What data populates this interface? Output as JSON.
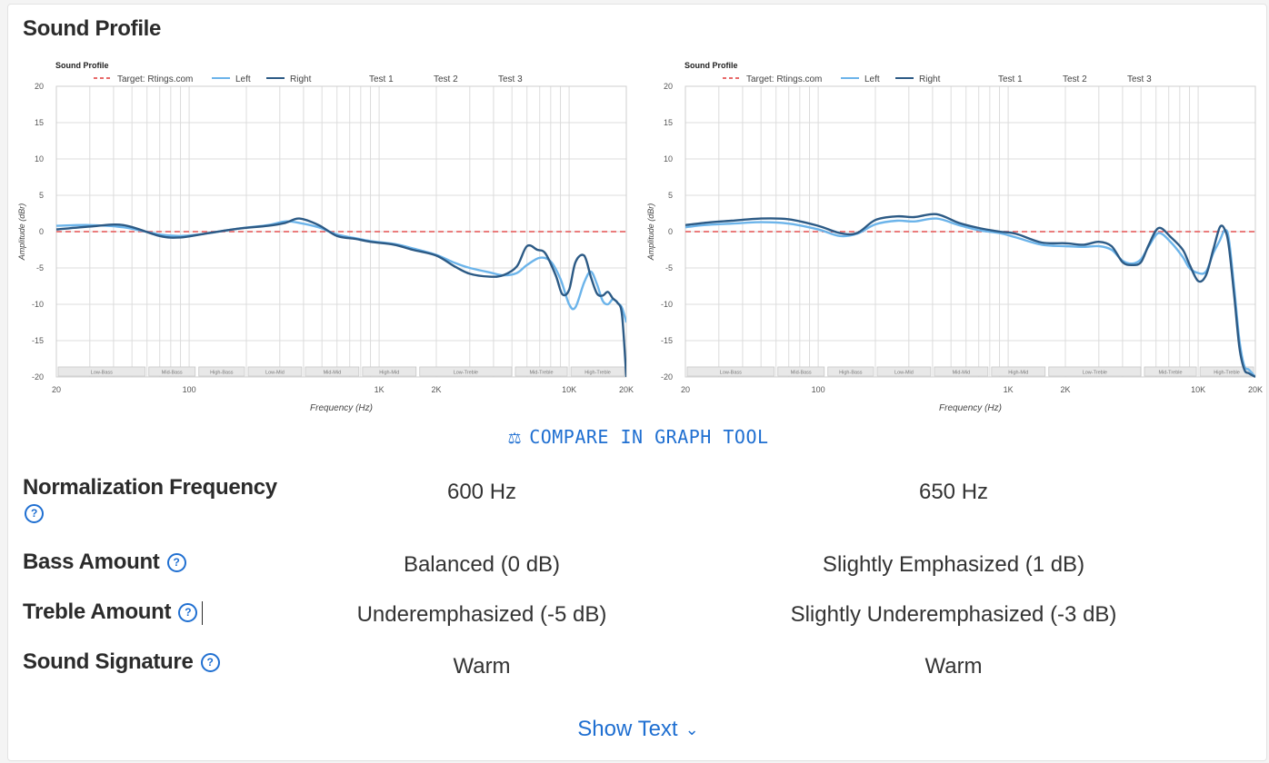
{
  "section_title": "Sound Profile",
  "compare_button": {
    "icon": "scale-icon",
    "label": "COMPARE IN GRAPH TOOL"
  },
  "chart_data": [
    {
      "type": "line",
      "title": "Sound Profile",
      "xlabel": "Frequency (Hz)",
      "ylabel": "Amplitude (dBr)",
      "xscale": "log",
      "xlim": [
        20,
        20000
      ],
      "ylim": [
        -20,
        20
      ],
      "yticks": [
        20,
        15,
        10,
        5,
        0,
        -5,
        -10,
        -15,
        -20
      ],
      "xticks": [
        {
          "v": 20,
          "label": "20"
        },
        {
          "v": 100,
          "label": "100"
        },
        {
          "v": 1000,
          "label": "1K"
        },
        {
          "v": 2000,
          "label": "2K"
        },
        {
          "v": 10000,
          "label": "10K"
        },
        {
          "v": 20000,
          "label": "20K"
        }
      ],
      "legend": [
        "Target: Rtings.com",
        "Left",
        "Right",
        "Test 1",
        "Test 2",
        "Test 3"
      ],
      "legend_position": "top",
      "grid": true,
      "bands": [
        "Low-Bass",
        "Mid-Bass",
        "High-Bass",
        "Low-Mid",
        "Mid-Mid",
        "High-Mid",
        "Low-Treble",
        "Mid-Treble",
        "High-Treble"
      ],
      "series": [
        {
          "name": "Target: Rtings.com",
          "color": "#e86a6a",
          "dash": true,
          "x": [
            20,
            20000
          ],
          "y": [
            0,
            0
          ]
        },
        {
          "name": "Left",
          "color": "#6cb4ea",
          "x": [
            20,
            30,
            45,
            70,
            90,
            120,
            180,
            260,
            320,
            380,
            480,
            600,
            750,
            900,
            1200,
            1500,
            2000,
            2500,
            3000,
            3800,
            4500,
            5300,
            6000,
            7000,
            8000,
            9000,
            10000,
            10800,
            12000,
            13000,
            14000,
            15000,
            16000,
            17000,
            18000,
            19000,
            20000
          ],
          "y": [
            0.8,
            0.9,
            0.6,
            -0.4,
            -0.6,
            -0.3,
            0.4,
            0.9,
            1.4,
            1.2,
            0.6,
            -0.4,
            -0.9,
            -1.3,
            -1.7,
            -2.3,
            -3.2,
            -4.3,
            -5.0,
            -5.6,
            -6.0,
            -5.7,
            -4.6,
            -3.6,
            -4.1,
            -6.5,
            -10.0,
            -10.4,
            -7.0,
            -5.5,
            -7.2,
            -9.5,
            -10.0,
            -9.3,
            -9.8,
            -10.5,
            -12.5
          ]
        },
        {
          "name": "Right",
          "color": "#2c5a85",
          "x": [
            20,
            30,
            45,
            70,
            90,
            120,
            180,
            260,
            320,
            380,
            480,
            600,
            750,
            900,
            1200,
            1500,
            2000,
            2500,
            3000,
            3800,
            4500,
            5300,
            6000,
            6800,
            7500,
            8500,
            9200,
            10000,
            10800,
            12000,
            13000,
            14000,
            15000,
            16000,
            17000,
            18000,
            19000,
            20000
          ],
          "y": [
            0.3,
            0.7,
            0.9,
            -0.6,
            -0.8,
            -0.3,
            0.4,
            0.8,
            1.2,
            1.8,
            0.9,
            -0.6,
            -1.0,
            -1.4,
            -1.8,
            -2.5,
            -3.3,
            -4.8,
            -5.8,
            -6.2,
            -6.0,
            -4.8,
            -2.0,
            -2.5,
            -3.0,
            -6.0,
            -8.6,
            -8.0,
            -4.2,
            -3.3,
            -6.2,
            -8.5,
            -8.8,
            -8.3,
            -9.2,
            -9.8,
            -11.5,
            -20
          ]
        }
      ]
    },
    {
      "type": "line",
      "title": "Sound Profile",
      "xlabel": "Frequency (Hz)",
      "ylabel": "Amplitude (dBr)",
      "xscale": "log",
      "xlim": [
        20,
        20000
      ],
      "ylim": [
        -20,
        20
      ],
      "yticks": [
        20,
        15,
        10,
        5,
        0,
        -5,
        -10,
        -15,
        -20
      ],
      "xticks": [
        {
          "v": 20,
          "label": "20"
        },
        {
          "v": 100,
          "label": "100"
        },
        {
          "v": 1000,
          "label": "1K"
        },
        {
          "v": 2000,
          "label": "2K"
        },
        {
          "v": 10000,
          "label": "10K"
        },
        {
          "v": 20000,
          "label": "20K"
        }
      ],
      "legend": [
        "Target: Rtings.com",
        "Left",
        "Right",
        "Test 1",
        "Test 2",
        "Test 3"
      ],
      "legend_position": "top",
      "grid": true,
      "bands": [
        "Low-Bass",
        "Mid-Bass",
        "High-Bass",
        "Low-Mid",
        "Mid-Mid",
        "High-Mid",
        "Low-Treble",
        "Mid-Treble",
        "High-Treble"
      ],
      "series": [
        {
          "name": "Target: Rtings.com",
          "color": "#e86a6a",
          "dash": true,
          "x": [
            20,
            20000
          ],
          "y": [
            0,
            0
          ]
        },
        {
          "name": "Left",
          "color": "#6cb4ea",
          "x": [
            20,
            25,
            35,
            50,
            70,
            100,
            130,
            160,
            200,
            260,
            320,
            420,
            550,
            700,
            900,
            1100,
            1500,
            2000,
            2500,
            3000,
            3500,
            4000,
            4500,
            5000,
            5500,
            6200,
            7200,
            8300,
            9000,
            10000,
            11000,
            12000,
            13000,
            13800,
            14500,
            15500,
            16500,
            17500,
            18500,
            20000
          ],
          "y": [
            0.6,
            0.9,
            1.1,
            1.3,
            1.1,
            0.3,
            -0.6,
            -0.3,
            1.0,
            1.5,
            1.4,
            1.8,
            0.9,
            0.2,
            -0.2,
            -0.8,
            -1.8,
            -2.0,
            -2.1,
            -2.0,
            -2.5,
            -4.0,
            -4.4,
            -3.8,
            -2.0,
            -0.2,
            -1.5,
            -3.5,
            -5.0,
            -5.7,
            -5.5,
            -3.0,
            -1.2,
            0.2,
            -1.0,
            -8.0,
            -15,
            -18.5,
            -19,
            -20
          ]
        },
        {
          "name": "Right",
          "color": "#2c5a85",
          "x": [
            20,
            25,
            35,
            50,
            70,
            100,
            130,
            160,
            200,
            260,
            320,
            420,
            550,
            700,
            900,
            1100,
            1500,
            2000,
            2500,
            3000,
            3500,
            4000,
            4500,
            5000,
            5500,
            6200,
            7200,
            8300,
            9000,
            10000,
            11000,
            12000,
            13000,
            13800,
            14500,
            15500,
            16500,
            17500,
            18500,
            20000
          ],
          "y": [
            0.9,
            1.2,
            1.5,
            1.8,
            1.7,
            0.8,
            -0.2,
            -0.2,
            1.6,
            2.1,
            2.0,
            2.4,
            1.2,
            0.5,
            0.0,
            -0.3,
            -1.5,
            -1.6,
            -1.8,
            -1.4,
            -2.0,
            -4.2,
            -4.6,
            -4.2,
            -1.8,
            0.5,
            -0.8,
            -2.5,
            -4.5,
            -6.8,
            -6.0,
            -2.5,
            0.6,
            0.3,
            -2.0,
            -9.0,
            -16,
            -19,
            -19.5,
            -20
          ]
        }
      ]
    }
  ],
  "rows": [
    {
      "label": "Normalization Frequency",
      "value_left": "600 Hz",
      "value_right": "650 Hz"
    },
    {
      "label": "Bass Amount",
      "value_left": "Balanced (0 dB)",
      "value_right": "Slightly Emphasized (1 dB)"
    },
    {
      "label": "Treble Amount",
      "value_left": "Underemphasized (-5 dB)",
      "value_right": "Slightly Underemphasized (-3 dB)"
    },
    {
      "label": "Sound Signature",
      "value_left": "Warm",
      "value_right": "Warm"
    }
  ],
  "help_icon": "help-circle-icon",
  "show_text": {
    "label": "Show Text",
    "icon": "chevron-down-icon"
  }
}
